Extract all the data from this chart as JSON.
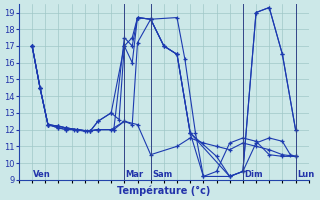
{
  "xlabel": "Température (°c)",
  "bg_color": "#cce8e8",
  "line_color": "#1c3ab0",
  "grid_color": "#a0c8c8",
  "ylim": [
    9,
    19.5
  ],
  "yticks": [
    9,
    10,
    11,
    12,
    13,
    14,
    15,
    16,
    17,
    18,
    19
  ],
  "xlim": [
    -0.5,
    10.5
  ],
  "day_tick_positions": [
    0,
    3.5,
    4.5,
    8.0,
    10.0
  ],
  "day_labels": [
    "Ven",
    "Mar",
    "Sam",
    "Dim",
    "Lun"
  ],
  "series": [
    {
      "x": [
        0.0,
        0.3,
        0.6,
        1.0,
        1.3,
        1.6,
        2.0,
        2.5,
        3.0,
        3.5,
        4.0,
        4.5,
        5.5,
        6.0,
        6.5,
        7.0,
        7.5,
        8.0,
        8.5,
        9.0,
        9.5,
        10.0
      ],
      "y": [
        17,
        14.5,
        12.3,
        12.1,
        12.0,
        12.0,
        11.9,
        12.0,
        12.0,
        12.5,
        12.3,
        10.5,
        11.0,
        11.5,
        11.2,
        11.0,
        10.8,
        11.2,
        11.0,
        10.8,
        10.5,
        10.4
      ]
    },
    {
      "x": [
        0.0,
        0.3,
        0.6,
        1.0,
        1.3,
        1.7,
        2.1,
        2.5,
        3.1,
        3.5,
        3.8,
        4.0,
        4.5,
        5.5,
        5.8,
        6.2,
        6.5,
        7.0,
        7.5,
        8.0,
        8.5,
        9.0,
        9.5,
        10.0
      ],
      "y": [
        17,
        14.5,
        12.3,
        12.1,
        12.0,
        12.0,
        11.9,
        12.0,
        12.0,
        12.5,
        12.3,
        17.2,
        18.6,
        18.7,
        16.2,
        11.8,
        9.2,
        9.5,
        11.2,
        11.5,
        11.3,
        10.5,
        10.4,
        10.4
      ]
    },
    {
      "x": [
        0.0,
        0.3,
        0.6,
        1.0,
        1.3,
        1.7,
        2.2,
        2.5,
        3.1,
        3.5,
        3.8,
        4.0,
        4.5,
        5.0,
        5.5,
        6.0,
        6.5,
        7.5,
        8.0,
        8.5,
        9.0,
        9.5,
        9.8,
        10.0
      ],
      "y": [
        17,
        14.5,
        12.3,
        12.2,
        12.1,
        12.0,
        11.9,
        12.0,
        12.0,
        17.5,
        17.0,
        18.7,
        18.6,
        17.0,
        16.5,
        11.8,
        9.2,
        9.2,
        9.5,
        11.2,
        11.5,
        11.3,
        10.5,
        10.4
      ]
    },
    {
      "x": [
        0.0,
        0.3,
        0.6,
        1.0,
        1.3,
        1.7,
        2.2,
        2.5,
        3.0,
        3.5,
        3.8,
        4.0,
        4.5,
        5.0,
        5.5,
        6.0,
        7.0,
        7.5,
        8.0,
        8.5,
        9.0,
        9.5,
        10.0
      ],
      "y": [
        17,
        14.5,
        12.3,
        12.2,
        12.1,
        12.0,
        11.9,
        12.5,
        13.0,
        17.0,
        16.0,
        18.7,
        18.6,
        17.0,
        16.5,
        11.8,
        10.4,
        9.2,
        9.5,
        19.0,
        19.3,
        16.5,
        12.0
      ]
    },
    {
      "x": [
        0.0,
        0.3,
        0.6,
        1.0,
        1.3,
        1.7,
        2.2,
        2.5,
        3.0,
        3.3,
        3.5,
        3.8,
        4.0,
        4.5,
        5.0,
        5.5,
        6.0,
        7.5,
        8.0,
        8.5,
        9.0,
        9.5,
        10.0
      ],
      "y": [
        17,
        14.5,
        12.3,
        12.2,
        12.1,
        12.0,
        11.9,
        12.5,
        13.0,
        12.6,
        17.0,
        17.5,
        18.7,
        18.6,
        17.0,
        16.5,
        11.8,
        9.2,
        9.5,
        19.0,
        19.3,
        16.5,
        12.0
      ]
    }
  ]
}
